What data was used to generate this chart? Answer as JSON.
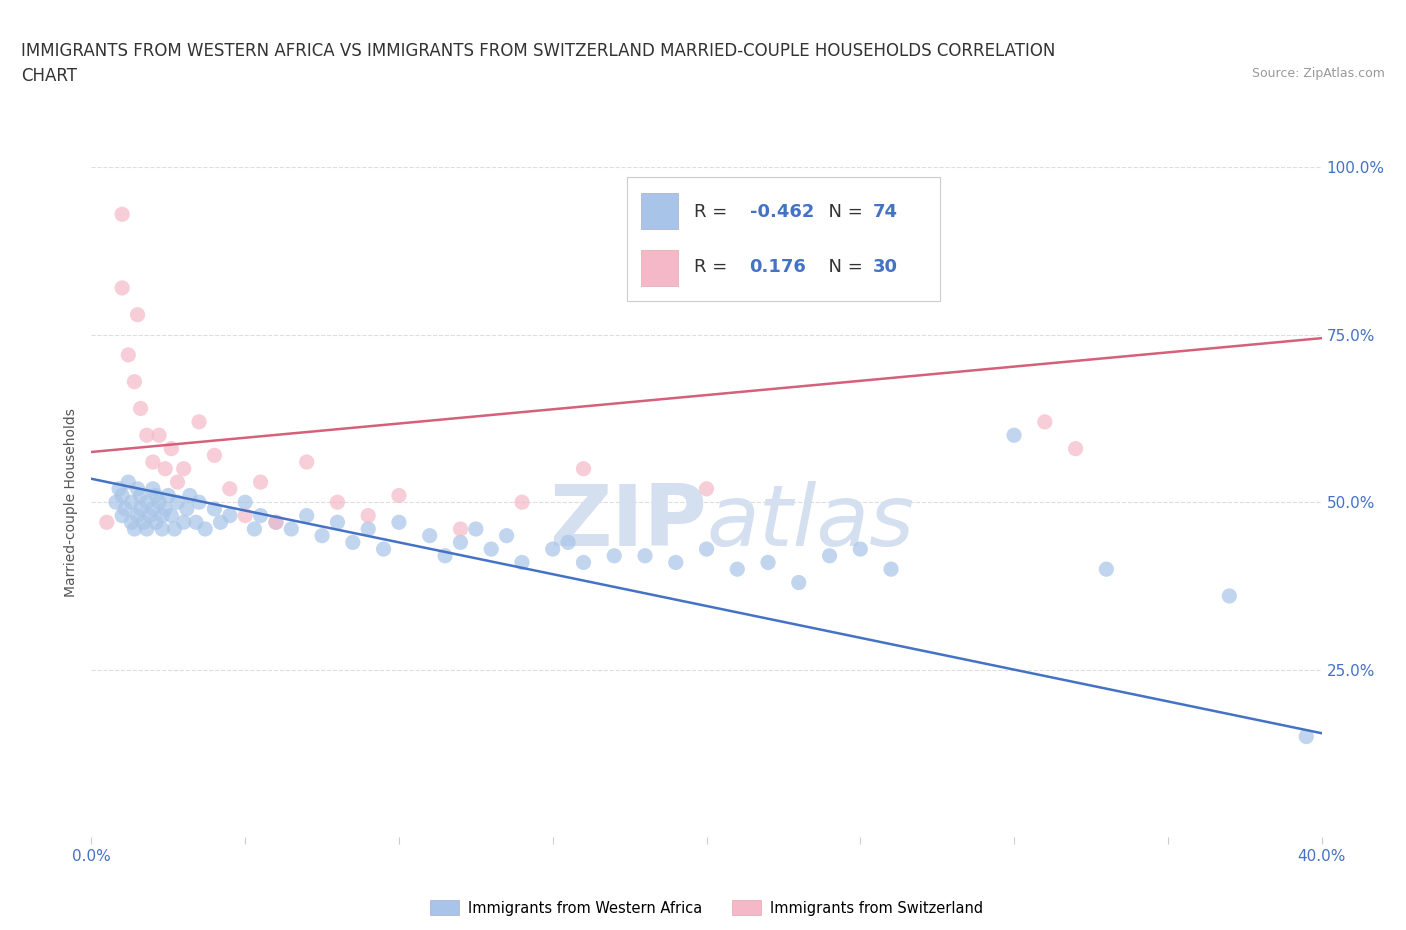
{
  "title_line1": "IMMIGRANTS FROM WESTERN AFRICA VS IMMIGRANTS FROM SWITZERLAND MARRIED-COUPLE HOUSEHOLDS CORRELATION",
  "title_line2": "CHART",
  "source_text": "Source: ZipAtlas.com",
  "ylabel": "Married-couple Households",
  "xlim": [
    0.0,
    0.4
  ],
  "ylim": [
    0.0,
    1.0
  ],
  "xtick_positions": [
    0.0,
    0.05,
    0.1,
    0.15,
    0.2,
    0.25,
    0.3,
    0.35,
    0.4
  ],
  "xticklabels": [
    "0.0%",
    "",
    "",
    "",
    "",
    "",
    "",
    "",
    "40.0%"
  ],
  "ytick_positions": [
    0.0,
    0.25,
    0.5,
    0.75,
    1.0
  ],
  "ytick_labels_right": [
    "",
    "25.0%",
    "50.0%",
    "75.0%",
    "100.0%"
  ],
  "blue_color": "#a8c4e8",
  "pink_color": "#f4b8c8",
  "blue_line_color": "#4472c4",
  "pink_line_color": "#d4607a",
  "text_color_blue": "#4472c4",
  "text_color_dark": "#333333",
  "watermark_color": "#d4dff0",
  "legend_R_blue": "-0.462",
  "legend_N_blue": "74",
  "legend_R_pink": "0.176",
  "legend_N_pink": "30",
  "legend_label_blue": "Immigrants from Western Africa",
  "legend_label_pink": "Immigrants from Switzerland",
  "blue_x": [
    0.008,
    0.009,
    0.01,
    0.01,
    0.011,
    0.012,
    0.013,
    0.013,
    0.014,
    0.015,
    0.015,
    0.016,
    0.016,
    0.017,
    0.018,
    0.018,
    0.019,
    0.02,
    0.02,
    0.021,
    0.021,
    0.022,
    0.023,
    0.023,
    0.024,
    0.025,
    0.026,
    0.027,
    0.028,
    0.03,
    0.031,
    0.032,
    0.034,
    0.035,
    0.037,
    0.04,
    0.042,
    0.045,
    0.05,
    0.053,
    0.055,
    0.06,
    0.065,
    0.07,
    0.075,
    0.08,
    0.085,
    0.09,
    0.095,
    0.1,
    0.11,
    0.115,
    0.12,
    0.125,
    0.13,
    0.135,
    0.14,
    0.15,
    0.155,
    0.16,
    0.17,
    0.18,
    0.19,
    0.2,
    0.21,
    0.22,
    0.23,
    0.24,
    0.25,
    0.26,
    0.3,
    0.33,
    0.37,
    0.395
  ],
  "blue_y": [
    0.5,
    0.52,
    0.48,
    0.51,
    0.49,
    0.53,
    0.47,
    0.5,
    0.46,
    0.52,
    0.48,
    0.51,
    0.49,
    0.47,
    0.5,
    0.46,
    0.48,
    0.52,
    0.49,
    0.51,
    0.47,
    0.5,
    0.48,
    0.46,
    0.49,
    0.51,
    0.48,
    0.46,
    0.5,
    0.47,
    0.49,
    0.51,
    0.47,
    0.5,
    0.46,
    0.49,
    0.47,
    0.48,
    0.5,
    0.46,
    0.48,
    0.47,
    0.46,
    0.48,
    0.45,
    0.47,
    0.44,
    0.46,
    0.43,
    0.47,
    0.45,
    0.42,
    0.44,
    0.46,
    0.43,
    0.45,
    0.41,
    0.43,
    0.44,
    0.41,
    0.42,
    0.42,
    0.41,
    0.43,
    0.4,
    0.41,
    0.38,
    0.42,
    0.43,
    0.4,
    0.6,
    0.4,
    0.36,
    0.15
  ],
  "pink_x": [
    0.005,
    0.01,
    0.01,
    0.012,
    0.014,
    0.015,
    0.016,
    0.018,
    0.02,
    0.022,
    0.024,
    0.026,
    0.028,
    0.03,
    0.035,
    0.04,
    0.045,
    0.05,
    0.055,
    0.06,
    0.07,
    0.08,
    0.09,
    0.1,
    0.12,
    0.14,
    0.16,
    0.2,
    0.31,
    0.32
  ],
  "pink_y": [
    0.47,
    0.93,
    0.82,
    0.72,
    0.68,
    0.78,
    0.64,
    0.6,
    0.56,
    0.6,
    0.55,
    0.58,
    0.53,
    0.55,
    0.62,
    0.57,
    0.52,
    0.48,
    0.53,
    0.47,
    0.56,
    0.5,
    0.48,
    0.51,
    0.46,
    0.5,
    0.55,
    0.52,
    0.62,
    0.58
  ],
  "blue_trend_x": [
    0.0,
    0.4
  ],
  "blue_trend_y": [
    0.535,
    0.155
  ],
  "pink_trend_x": [
    0.0,
    0.4
  ],
  "pink_trend_y": [
    0.575,
    0.745
  ],
  "background_color": "#ffffff",
  "grid_color": "#dddddd",
  "title_fontsize": 12,
  "axis_label_fontsize": 10,
  "tick_fontsize": 11
}
